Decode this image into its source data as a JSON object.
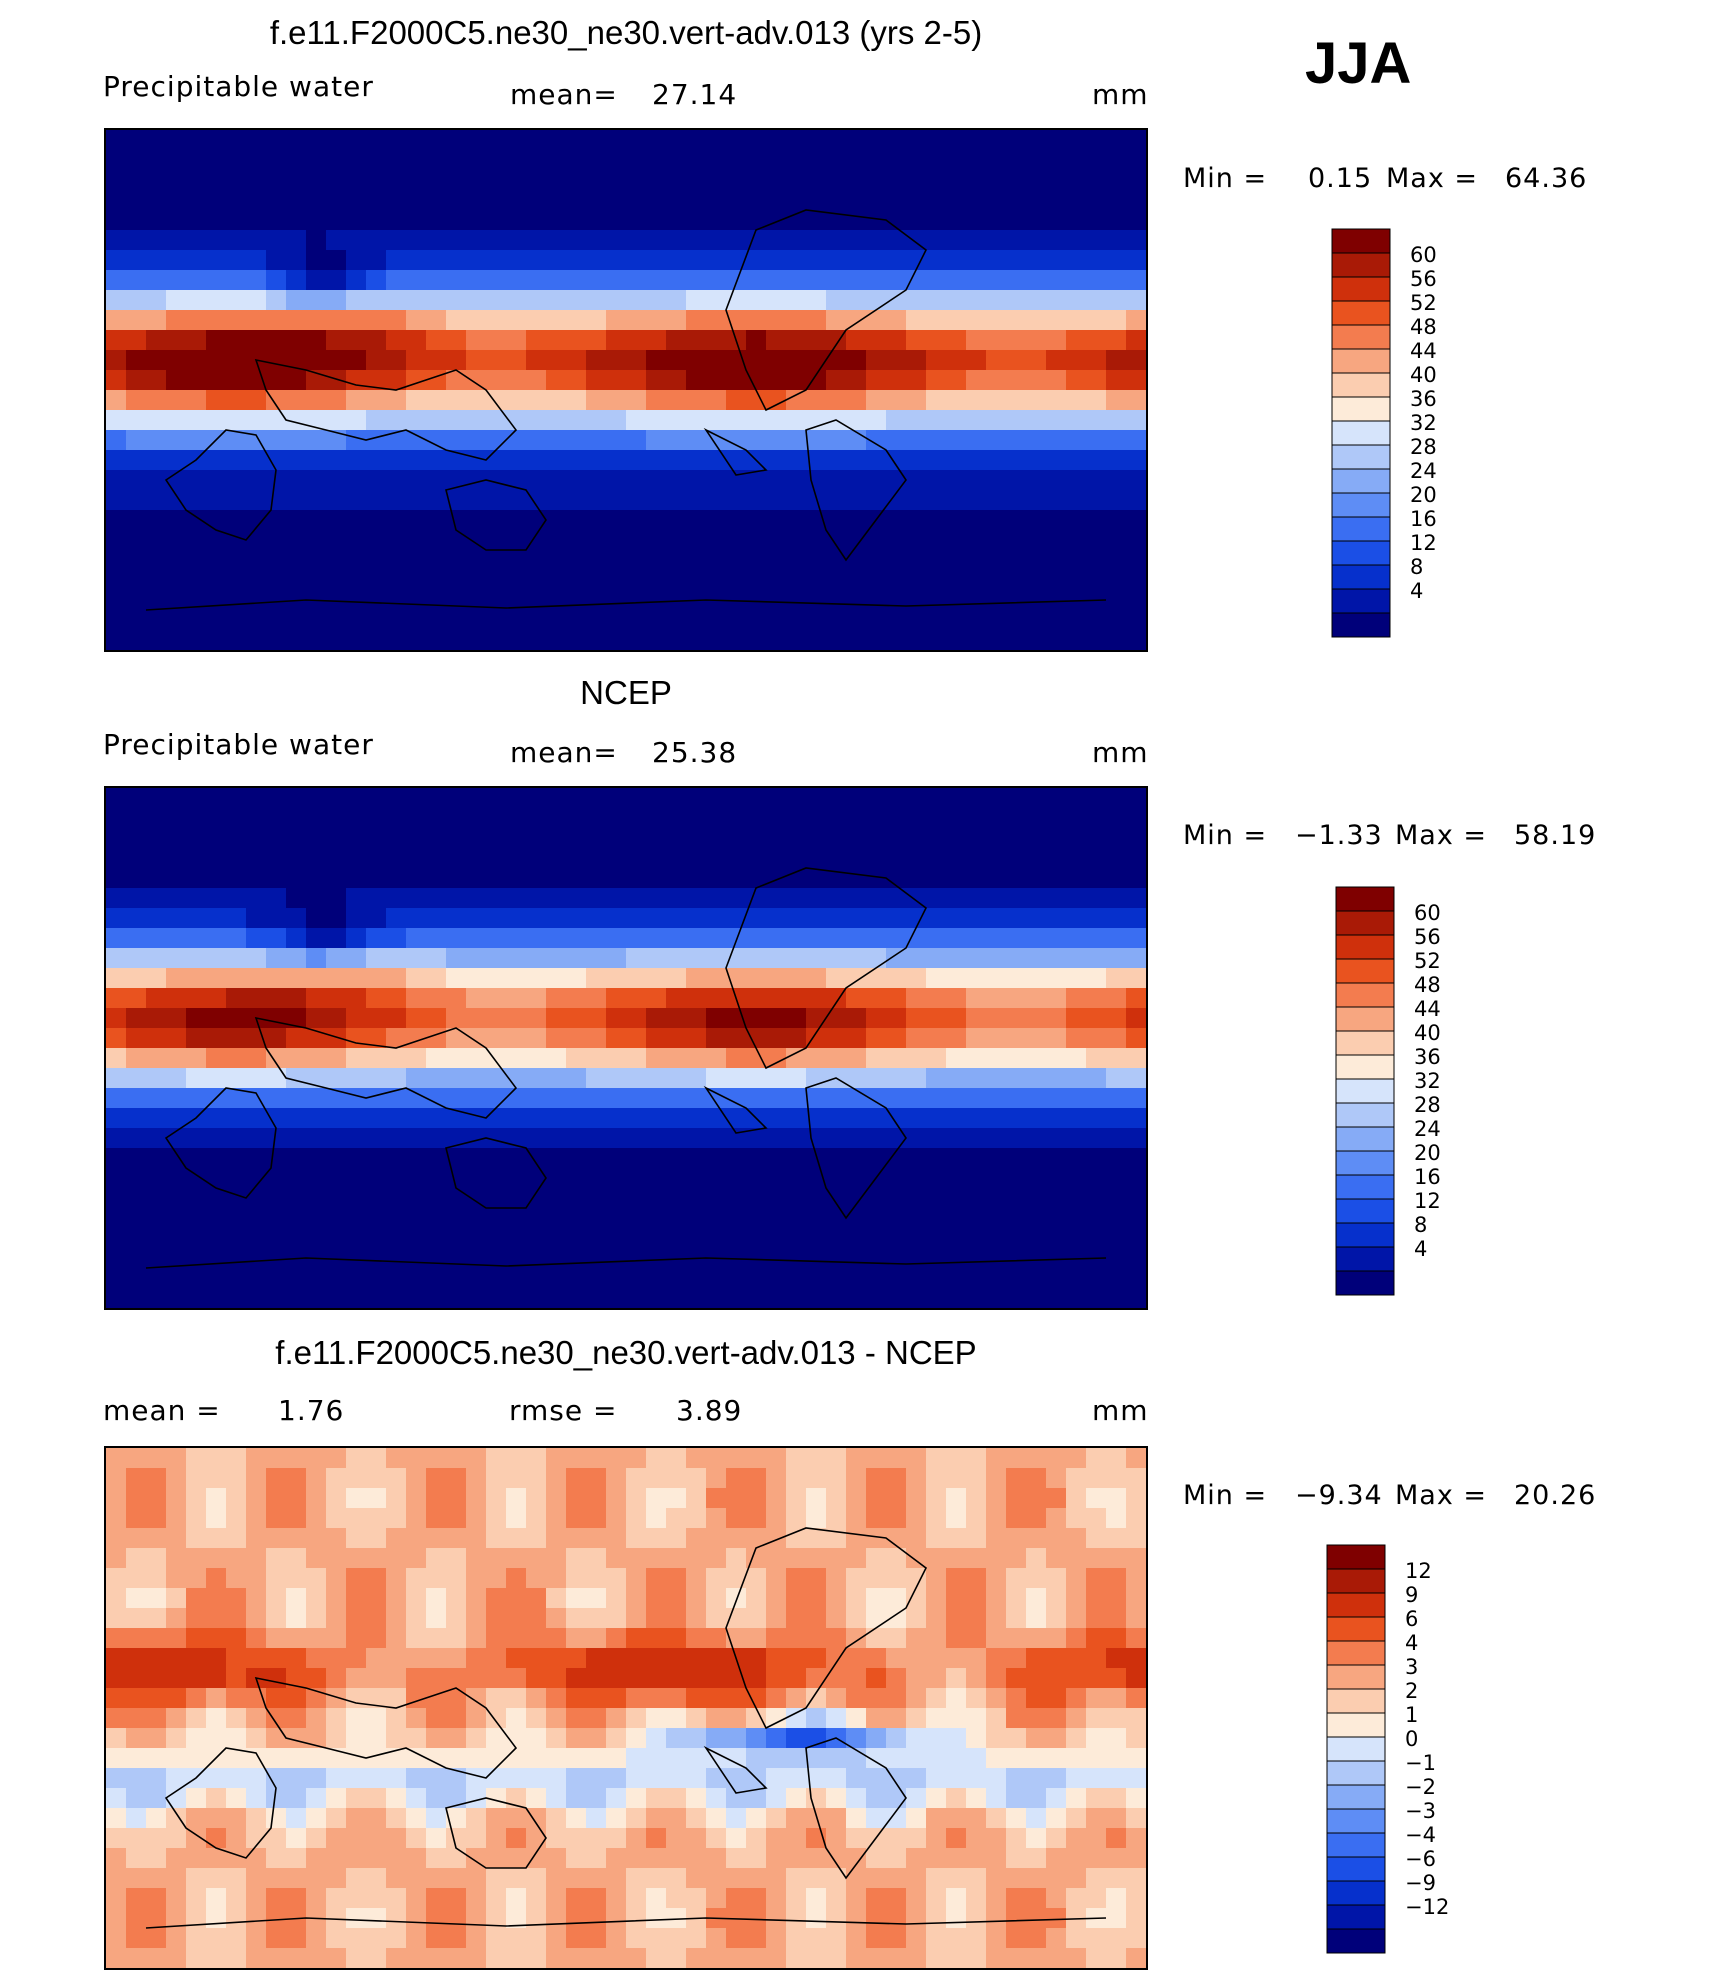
{
  "season": "JJA",
  "colors": {
    "abs_scale": [
      "#00007a",
      "#0015a8",
      "#0630cc",
      "#1b4fe6",
      "#3a6ef2",
      "#5e8df5",
      "#86abf6",
      "#afc8f8",
      "#d6e4fb",
      "#fdebd9",
      "#fbcdb0",
      "#f7a680",
      "#f37c4f",
      "#e9531f",
      "#cf300c",
      "#a91a06",
      "#7f0000"
    ],
    "diff_scale": [
      "#00007a",
      "#0015a8",
      "#0630cc",
      "#1b4fe6",
      "#3a6ef2",
      "#5e8df5",
      "#86abf6",
      "#afc8f8",
      "#d6e4fb",
      "#fdebd9",
      "#fbcdb0",
      "#f7a680",
      "#f37c4f",
      "#e9531f",
      "#cf300c",
      "#a91a06",
      "#7f0000"
    ]
  },
  "chart_data": [
    {
      "type": "heatmap",
      "title": "f.e11.F2000C5.ne30_ne30.vert-adv.013 (yrs 2-5)",
      "left_label": "Precipitable  water",
      "mean_label": "mean=",
      "mean_value": "27.14",
      "units": "mm",
      "min_label": "Min  =",
      "min_value": "0.15",
      "max_label": "Max  =",
      "max_value": "64.36",
      "colorbar_levels": [
        "60",
        "56",
        "52",
        "48",
        "44",
        "40",
        "36",
        "32",
        "28",
        "24",
        "20",
        "16",
        "12",
        "8",
        "4"
      ],
      "field": "model"
    },
    {
      "type": "heatmap",
      "title": "NCEP",
      "left_label": "Precipitable  water",
      "mean_label": "mean=",
      "mean_value": "25.38",
      "units": "mm",
      "min_label": "Min  =",
      "min_value": "−1.33",
      "max_label": "Max  =",
      "max_value": "58.19",
      "colorbar_levels": [
        "60",
        "56",
        "52",
        "48",
        "44",
        "40",
        "36",
        "32",
        "28",
        "24",
        "20",
        "16",
        "12",
        "8",
        "4"
      ],
      "field": "obs"
    },
    {
      "type": "heatmap",
      "title": "f.e11.F2000C5.ne30_ne30.vert-adv.013 - NCEP",
      "left_label": "mean  =",
      "left_value": "1.76",
      "mean_label": "rmse  =",
      "mean_value": "3.89",
      "units": "mm",
      "min_label": "Min  =",
      "min_value": "−9.34",
      "max_label": "Max  =",
      "max_value": "20.26",
      "colorbar_levels": [
        "12",
        "9",
        "6",
        "4",
        "3",
        "2",
        "1",
        "0",
        "−1",
        "−2",
        "−3",
        "−4",
        "−6",
        "−9",
        "−12"
      ],
      "field": "diff"
    }
  ]
}
